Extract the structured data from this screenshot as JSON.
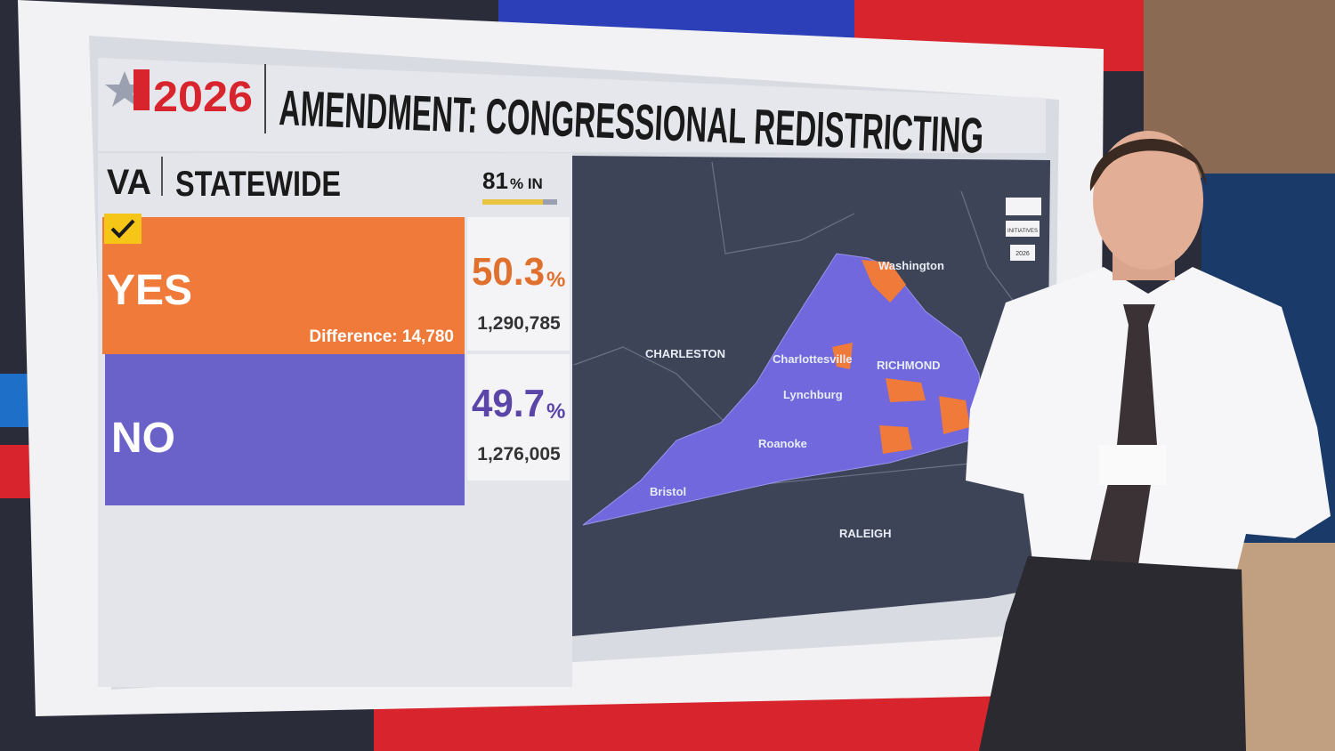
{
  "header": {
    "year": "2026",
    "title": "AMENDMENT: CONGRESSIONAL REDISTRICTING"
  },
  "race": {
    "state": "VA",
    "scope": "STATEWIDE",
    "reporting": 81,
    "reporting_label": "% IN"
  },
  "results": [
    {
      "name": "YES",
      "pct": "50.3",
      "pct_unit": "%",
      "votes": "1,290,785",
      "difference": "Difference: 14,780"
    },
    {
      "name": "NO",
      "pct": "49.7",
      "pct_unit": "%",
      "votes": "1,276,005"
    }
  ],
  "map": {
    "labels": [
      "Washington",
      "CHARLESTON",
      "Charlottesville",
      "RICHMOND",
      "Lynchburg",
      "Roanoke",
      "Bristol",
      "RALEIGH"
    ]
  },
  "sidebar": {
    "buttons": [
      "INITIATIVES",
      "2026"
    ]
  }
}
